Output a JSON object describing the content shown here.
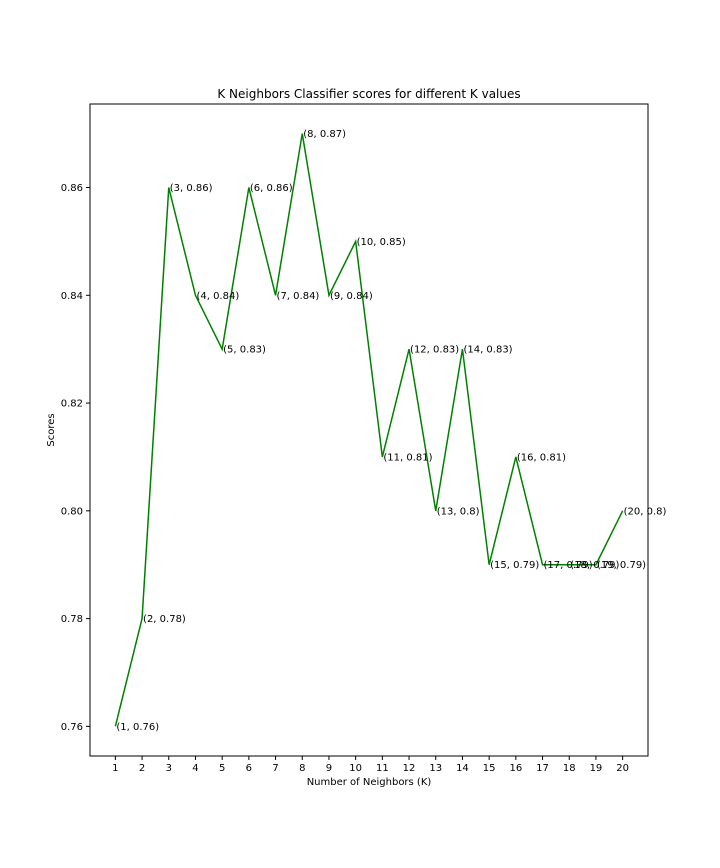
{
  "chart_data": {
    "type": "line",
    "title": "K Neighbors Classifier scores for different K values",
    "xlabel": "Number of Neighbors (K)",
    "ylabel": "Scores",
    "x": [
      1,
      2,
      3,
      4,
      5,
      6,
      7,
      8,
      9,
      10,
      11,
      12,
      13,
      14,
      15,
      16,
      17,
      18,
      19,
      20
    ],
    "x_ticks": [
      "1",
      "2",
      "3",
      "4",
      "5",
      "6",
      "7",
      "8",
      "9",
      "10",
      "11",
      "12",
      "13",
      "14",
      "15",
      "16",
      "17",
      "18",
      "19",
      "20"
    ],
    "y_ticks": [
      "0.76",
      "0.78",
      "0.80",
      "0.82",
      "0.84",
      "0.86"
    ],
    "series": [
      {
        "values": [
          0.76,
          0.78,
          0.86,
          0.84,
          0.83,
          0.86,
          0.84,
          0.87,
          0.84,
          0.85,
          0.81,
          0.83,
          0.8,
          0.83,
          0.79,
          0.81,
          0.79,
          0.79,
          0.79,
          0.8
        ],
        "color": "#008000"
      }
    ],
    "annotations": [
      "(1, 0.76)",
      "(2, 0.78)",
      "(3, 0.86)",
      "(4, 0.84)",
      "(5, 0.83)",
      "(6, 0.86)",
      "(7, 0.84)",
      "(8, 0.87)",
      "(9, 0.84)",
      "(10, 0.85)",
      "(11, 0.81)",
      "(12, 0.83)",
      "(13, 0.8)",
      "(14, 0.83)",
      "(15, 0.79)",
      "(16, 0.81)",
      "(17, 0.79)",
      "(18, 0.79)",
      "(19, 0.79)",
      "(20, 0.8)"
    ],
    "xlim": [
      0.05,
      20.95
    ],
    "ylim": [
      0.7545,
      0.8755
    ],
    "grid": false
  }
}
